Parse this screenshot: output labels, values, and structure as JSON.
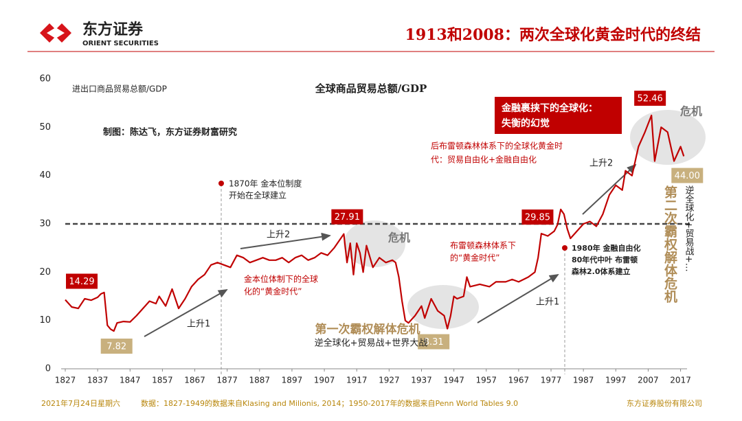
{
  "header": {
    "logo_name": "东方证券",
    "logo_sub": "ORIENT SECURITIES",
    "title": "1913和2008：两次全球化黄金时代的终结"
  },
  "chart_data": {
    "type": "line",
    "x": [
      1827,
      1829,
      1831,
      1833,
      1835,
      1837,
      1838,
      1839,
      1840,
      1841,
      1842,
      1843,
      1845,
      1847,
      1849,
      1851,
      1853,
      1855,
      1856,
      1858,
      1860,
      1862,
      1864,
      1866,
      1868,
      1870,
      1872,
      1874,
      1876,
      1878,
      1880,
      1882,
      1884,
      1886,
      1888,
      1890,
      1892,
      1894,
      1896,
      1898,
      1900,
      1902,
      1904,
      1906,
      1908,
      1910,
      1913,
      1914,
      1915,
      1916,
      1917,
      1918,
      1919,
      1920,
      1922,
      1924,
      1926,
      1928,
      1929,
      1930,
      1931,
      1932,
      1933,
      1935,
      1937,
      1938,
      1940,
      1942,
      1944,
      1945,
      1946,
      1947,
      1948,
      1950,
      1951,
      1952,
      1955,
      1958,
      1960,
      1963,
      1965,
      1967,
      1970,
      1972,
      1973,
      1974,
      1976,
      1978,
      1979,
      1980,
      1981,
      1982,
      1983,
      1985,
      1987,
      1989,
      1991,
      1993,
      1995,
      1997,
      1999,
      2000,
      2002,
      2004,
      2006,
      2008,
      2009,
      2011,
      2013,
      2015,
      2017,
      2018
    ],
    "values": [
      14.29,
      12.8,
      12.5,
      14.5,
      14.2,
      14.8,
      15.5,
      15.8,
      9,
      8.2,
      7.82,
      9.5,
      9.8,
      9.7,
      11,
      12.5,
      14,
      13.5,
      15,
      13,
      16.5,
      12.5,
      14.5,
      17,
      18.5,
      19.5,
      21.5,
      22,
      21.5,
      21,
      23.5,
      23,
      22,
      22.5,
      23,
      22.5,
      22.5,
      23,
      22,
      23,
      23.5,
      22.5,
      23,
      24,
      23.5,
      25,
      27.91,
      22,
      26,
      19.5,
      26,
      24,
      20,
      25.5,
      21,
      23,
      22,
      22.5,
      22,
      19,
      14,
      10,
      9.5,
      11,
      13,
      10.5,
      14.5,
      12,
      11,
      8.31,
      11,
      15,
      14.5,
      15,
      19,
      17,
      17.5,
      17,
      18,
      18,
      18.5,
      18,
      19,
      20,
      23,
      28,
      27.5,
      28.5,
      29.85,
      33,
      32,
      29,
      27,
      28.5,
      30,
      30.5,
      29.5,
      32,
      36,
      38,
      37,
      41,
      40,
      46,
      49,
      52.46,
      43,
      50,
      49,
      43,
      46,
      44
    ],
    "value_labels": [
      "14.29",
      null,
      null,
      null,
      null,
      null,
      null,
      null,
      null,
      null,
      "7.82",
      null,
      null,
      null,
      null,
      null,
      null,
      null,
      null,
      null,
      null,
      null,
      null,
      null,
      null,
      null,
      null,
      null,
      null,
      null,
      null,
      null,
      null,
      null,
      null,
      null,
      null,
      null,
      null,
      null,
      null,
      null,
      null,
      null,
      null,
      null,
      "27.91",
      null,
      null,
      null,
      null,
      null,
      null,
      null,
      null,
      null,
      null,
      null,
      null,
      null,
      null,
      null,
      null,
      null,
      null,
      null,
      null,
      null,
      null,
      "8.31",
      null,
      null,
      null,
      null,
      null,
      null,
      null,
      null,
      null,
      null,
      null,
      null,
      null,
      null,
      null,
      null,
      null,
      null,
      "29.85",
      null,
      null,
      null,
      null,
      null,
      null,
      null,
      null,
      null,
      null,
      null,
      null,
      null,
      null,
      null,
      null,
      "52.46",
      null,
      null,
      null,
      null,
      null,
      "44.00"
    ],
    "color": "#c00000",
    "xlim": [
      1827,
      2019
    ],
    "xticks": [
      1827,
      1837,
      1847,
      1857,
      1867,
      1877,
      1887,
      1897,
      1907,
      1917,
      1927,
      1937,
      1947,
      1957,
      1967,
      1977,
      1987,
      1997,
      2007,
      2017
    ],
    "ylim": [
      0,
      60
    ],
    "yticks": [
      0,
      10,
      20,
      30,
      40,
      50,
      60
    ],
    "reference_line": 30,
    "annotations": [
      {
        "lines": [
          "进出口商品贸易总额/GDP"
        ]
      },
      {
        "lines": [
          "全球商品贸易总额/GDP"
        ]
      },
      {
        "lines": [
          "制图：陈达飞，东方证券财富研究"
        ]
      },
      {
        "lines": [
          "1870年 金本位制度",
          "开始在全球建立"
        ]
      },
      {
        "lines": [
          "上升1"
        ]
      },
      {
        "lines": [
          "上升2"
        ]
      },
      {
        "lines": [
          "危机"
        ]
      },
      {
        "lines": [
          "金本位体制下的全球",
          "化的“黄金时代”"
        ]
      },
      {
        "lines": [
          "第一次霸权解体危机"
        ]
      },
      {
        "lines": [
          "逆全球化+贸易战+世界大战"
        ]
      },
      {
        "lines": [
          "布雷顿森林体系下",
          "的“黄金时代”"
        ]
      },
      {
        "lines": [
          "上升1"
        ]
      },
      {
        "lines": [
          "1980年 金融自由化",
          "80年代中叶 布雷顿",
          "森林2.0体系建立"
        ]
      },
      {
        "lines": [
          "后布雷顿森林体系下的全球化黄金时",
          "代：贸易自由化+金融自由化"
        ]
      },
      {
        "lines": [
          "金融裹挟下的全球化：",
          "失衡的幻觉"
        ]
      },
      {
        "lines": [
          "上升2"
        ]
      },
      {
        "lines": [
          "危机"
        ]
      },
      {
        "lines": [
          "第二次霸权解体危机"
        ]
      },
      {
        "lines": [
          "逆全球化+贸易战+…"
        ]
      }
    ]
  },
  "footer": {
    "date": "2021年7月24日星期六",
    "source": "数据：1827-1949的数据来自Klasing and Milionis, 2014；1950-2017年的数据来自Penn World Tables 9.0",
    "company": "东方证券股份有限公司"
  }
}
